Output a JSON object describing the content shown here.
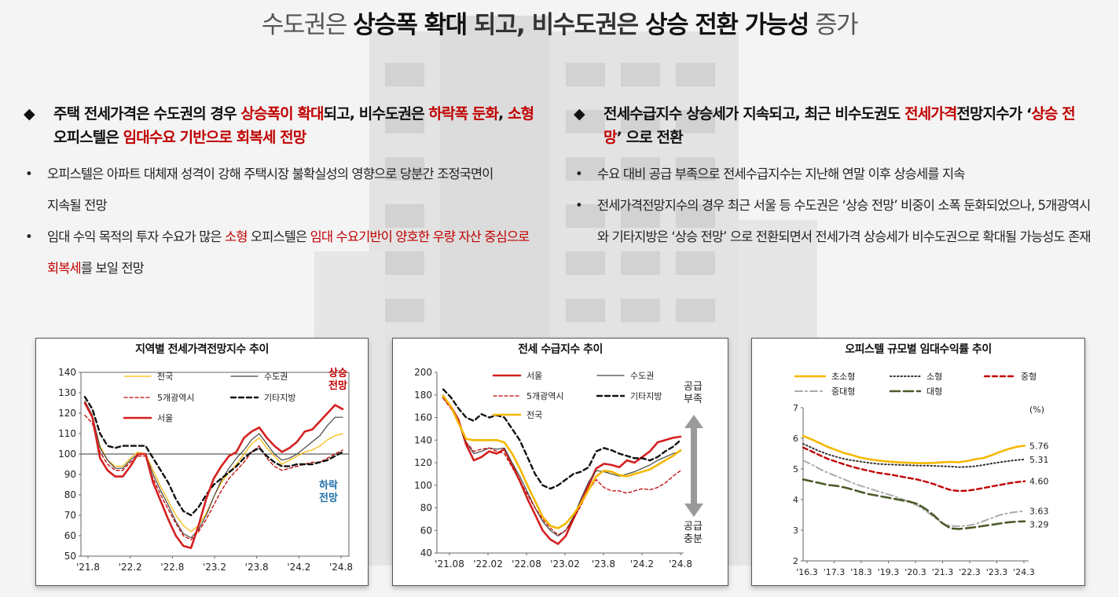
{
  "title": {
    "part1": "수도권은 ",
    "part2": "상승폭 확대",
    "part3": " 되고, 비수도권은 ",
    "part4": "상승 전환 가능성",
    "part5": " 증가"
  },
  "left": {
    "lead": {
      "a": "주택 전세가격은 수도권의 경우 ",
      "b": "상승폭이 확대",
      "c": "되고, 비수도권은 ",
      "d": "하락폭 둔화",
      "e": ", ",
      "f": "소형",
      "g": " 오피스텔은 ",
      "h": "임대수요 기반으로 회복세 전망"
    },
    "bullet1": "오피스텔은 아파트 대체재 성격이 강해 주택시장 불확실성의 영향으로 당분간 조정국면이 지속될 전망",
    "bullet2": {
      "a": "임대 수익 목적의 투자 수요가 많은 ",
      "b": "소형",
      "c": " 오피스텔은 ",
      "d": "임대 수요기반이 양호한 우량 자산 중심으로 회복세",
      "e": "를 보일 전망"
    }
  },
  "right": {
    "lead": {
      "a": "전세수급지수 상승세가 지속되고, 최근 비수도권도 ",
      "b": "전세가격",
      "c": "전망지수가 ‘",
      "d": "상승 전망",
      "e": "’ 으로 전환"
    },
    "bullet1": "수요 대비 공급 부족으로 전세수급지수는 지난해 연말 이후 상승세를 지속",
    "bullet2": "전세가격전망지수의 경우 최근 서울 등 수도권은 ‘상승 전망’ 비중이 소폭 둔화되었으나, 5개광역시와 기타지방은 ‘상승 전망’ 으로 전환되면서 전세가격 상승세가 비수도권으로 확대될 가능성도 존재"
  },
  "chart_data": [
    {
      "type": "line",
      "title": "지역별 전세가격전망지수 추이",
      "ylim": [
        50,
        140
      ],
      "yticks": [
        50,
        60,
        70,
        80,
        90,
        100,
        110,
        120,
        130,
        140
      ],
      "xticks": [
        "'21.8",
        "'22.2",
        "'22.8",
        "'23.2",
        "'23.8",
        "'24.2",
        "'24.8"
      ],
      "reference_line": 100,
      "annotations": {
        "up": "상승\n전망",
        "down": "하락\n전망"
      },
      "annotation_colors": {
        "up": "#c00000",
        "down": "#1f6fa8"
      },
      "series": [
        {
          "name": "전국",
          "color": "#f5b800",
          "style": "solid",
          "values": [
            126,
            118,
            104,
            97,
            94,
            94,
            98,
            101,
            100,
            92,
            84,
            77,
            70,
            65,
            62,
            65,
            71,
            79,
            86,
            91,
            95,
            100,
            105,
            108,
            103,
            99,
            95,
            97,
            99,
            101,
            102,
            104,
            107,
            109,
            110
          ]
        },
        {
          "name": "수도권",
          "color": "#444444",
          "style": "solid",
          "values": [
            126,
            119,
            103,
            97,
            93,
            93,
            97,
            100,
            100,
            90,
            82,
            75,
            67,
            61,
            59,
            63,
            70,
            79,
            87,
            93,
            98,
            102,
            107,
            110,
            105,
            100,
            97,
            98,
            100,
            103,
            106,
            109,
            114,
            118,
            118
          ]
        },
        {
          "name": "5개광역시",
          "color": "#c00000",
          "style": "dashed",
          "values": [
            119,
            115,
            101,
            95,
            92,
            92,
            96,
            99,
            99,
            88,
            80,
            73,
            66,
            60,
            58,
            62,
            68,
            75,
            82,
            88,
            92,
            96,
            101,
            104,
            98,
            94,
            92,
            93,
            94,
            95,
            96,
            96,
            98,
            100,
            102
          ]
        },
        {
          "name": "기타지방",
          "color": "#111111",
          "style": "dashed-bold",
          "values": [
            128,
            122,
            110,
            104,
            103,
            104,
            104,
            104,
            104,
            98,
            92,
            86,
            78,
            72,
            70,
            74,
            80,
            85,
            88,
            91,
            94,
            98,
            101,
            103,
            99,
            96,
            94,
            94,
            95,
            95,
            95,
            96,
            97,
            99,
            101
          ]
        },
        {
          "name": "서울",
          "color": "#d42020",
          "style": "solid-bold",
          "values": [
            125,
            118,
            98,
            92,
            89,
            89,
            94,
            100,
            100,
            86,
            77,
            68,
            60,
            55,
            54,
            65,
            78,
            88,
            94,
            99,
            101,
            108,
            111,
            113,
            108,
            104,
            101,
            103,
            106,
            111,
            112,
            116,
            120,
            124,
            122
          ]
        }
      ]
    },
    {
      "type": "line",
      "title": "전세 수급지수 추이",
      "ylim": [
        40,
        200
      ],
      "yticks": [
        40,
        60,
        80,
        100,
        120,
        140,
        160,
        180,
        200
      ],
      "xticks": [
        "'21.08",
        "'22.02",
        "'22.08",
        "'23.02",
        "'23.8",
        "'24.2",
        "'24.8"
      ],
      "annotations": {
        "up": "공급\n부족",
        "down": "공급\n충분"
      },
      "series": [
        {
          "name": "서울",
          "color": "#d42020",
          "style": "solid-bold",
          "values": [
            178,
            170,
            158,
            136,
            122,
            125,
            130,
            128,
            132,
            118,
            104,
            88,
            74,
            60,
            52,
            48,
            55,
            70,
            85,
            100,
            115,
            119,
            118,
            116,
            122,
            120,
            125,
            130,
            138,
            140,
            142,
            143
          ]
        },
        {
          "name": "수도권",
          "color": "#444444",
          "style": "solid",
          "values": [
            180,
            170,
            155,
            138,
            128,
            130,
            133,
            132,
            133,
            120,
            108,
            94,
            80,
            68,
            60,
            55,
            60,
            72,
            88,
            103,
            113,
            112,
            110,
            108,
            110,
            112,
            115,
            118,
            122,
            125,
            128,
            130
          ]
        },
        {
          "name": "5개광역시",
          "color": "#c00000",
          "style": "dashed",
          "values": [
            177,
            168,
            156,
            138,
            130,
            132,
            133,
            130,
            128,
            116,
            104,
            92,
            80,
            70,
            62,
            56,
            60,
            70,
            82,
            96,
            105,
            98,
            95,
            95,
            93,
            95,
            97,
            96,
            98,
            102,
            108,
            113
          ]
        },
        {
          "name": "기타지방",
          "color": "#111111",
          "style": "dashed-bold",
          "values": [
            185,
            178,
            168,
            160,
            157,
            163,
            160,
            162,
            160,
            150,
            140,
            125,
            110,
            100,
            97,
            100,
            105,
            110,
            112,
            116,
            130,
            133,
            131,
            128,
            126,
            124,
            124,
            122,
            125,
            130,
            134,
            140
          ]
        },
        {
          "name": "전국",
          "color": "#f5b800",
          "style": "solid-bold",
          "values": [
            179,
            170,
            155,
            141,
            140,
            140,
            140,
            140,
            138,
            128,
            115,
            100,
            86,
            72,
            64,
            62,
            66,
            74,
            84,
            96,
            108,
            113,
            112,
            109,
            108,
            110,
            112,
            114,
            118,
            122,
            126,
            131
          ]
        }
      ]
    },
    {
      "type": "line",
      "title": "오피스텔 규모별 임대수익률 추이",
      "ylim": [
        2,
        7
      ],
      "yticks": [
        2,
        3,
        4,
        5,
        6,
        7
      ],
      "unit": "(%)",
      "xticks": [
        "'16.3",
        "'17.3",
        "'18.3",
        "'19.3",
        "'20.3",
        "'21.3",
        "'22.3",
        "'23.3",
        "'24.3"
      ],
      "end_labels": [
        "5.76",
        "5.31",
        "4.60",
        "3.63",
        "3.29"
      ],
      "series": [
        {
          "name": "초소형",
          "color": "#f5b800",
          "style": "solid-bold",
          "values": [
            6.08,
            5.97,
            5.85,
            5.72,
            5.62,
            5.52,
            5.45,
            5.37,
            5.32,
            5.28,
            5.25,
            5.23,
            5.21,
            5.2,
            5.19,
            5.19,
            5.2,
            5.22,
            5.23,
            5.22,
            5.26,
            5.32,
            5.36,
            5.45,
            5.56,
            5.65,
            5.72,
            5.76
          ]
        },
        {
          "name": "소형",
          "color": "#333333",
          "style": "dotted",
          "values": [
            5.82,
            5.7,
            5.58,
            5.48,
            5.4,
            5.33,
            5.28,
            5.24,
            5.2,
            5.17,
            5.15,
            5.14,
            5.13,
            5.12,
            5.11,
            5.11,
            5.1,
            5.09,
            5.08,
            5.06,
            5.07,
            5.09,
            5.13,
            5.18,
            5.22,
            5.26,
            5.29,
            5.31
          ]
        },
        {
          "name": "중형",
          "color": "#c00000",
          "style": "dashed-bold",
          "values": [
            5.7,
            5.58,
            5.45,
            5.33,
            5.24,
            5.15,
            5.07,
            5.0,
            4.94,
            4.88,
            4.84,
            4.8,
            4.75,
            4.7,
            4.65,
            4.58,
            4.5,
            4.4,
            4.31,
            4.28,
            4.29,
            4.33,
            4.38,
            4.43,
            4.48,
            4.53,
            4.57,
            4.6
          ]
        },
        {
          "name": "중대형",
          "color": "#aaaaaa",
          "style": "dashdot",
          "values": [
            5.28,
            5.15,
            5.0,
            4.88,
            4.77,
            4.66,
            4.55,
            4.45,
            4.37,
            4.28,
            4.2,
            4.12,
            4.02,
            3.92,
            3.8,
            3.62,
            3.42,
            3.22,
            3.14,
            3.13,
            3.15,
            3.2,
            3.3,
            3.4,
            3.5,
            3.56,
            3.6,
            3.63
          ]
        },
        {
          "name": "대형",
          "color": "#4a5a28",
          "style": "longdash-bold",
          "values": [
            4.66,
            4.6,
            4.54,
            4.48,
            4.45,
            4.4,
            4.33,
            4.25,
            4.18,
            4.13,
            4.08,
            4.03,
            3.98,
            3.93,
            3.85,
            3.68,
            3.47,
            3.22,
            3.06,
            3.04,
            3.07,
            3.1,
            3.14,
            3.18,
            3.22,
            3.26,
            3.28,
            3.29
          ]
        }
      ]
    }
  ]
}
